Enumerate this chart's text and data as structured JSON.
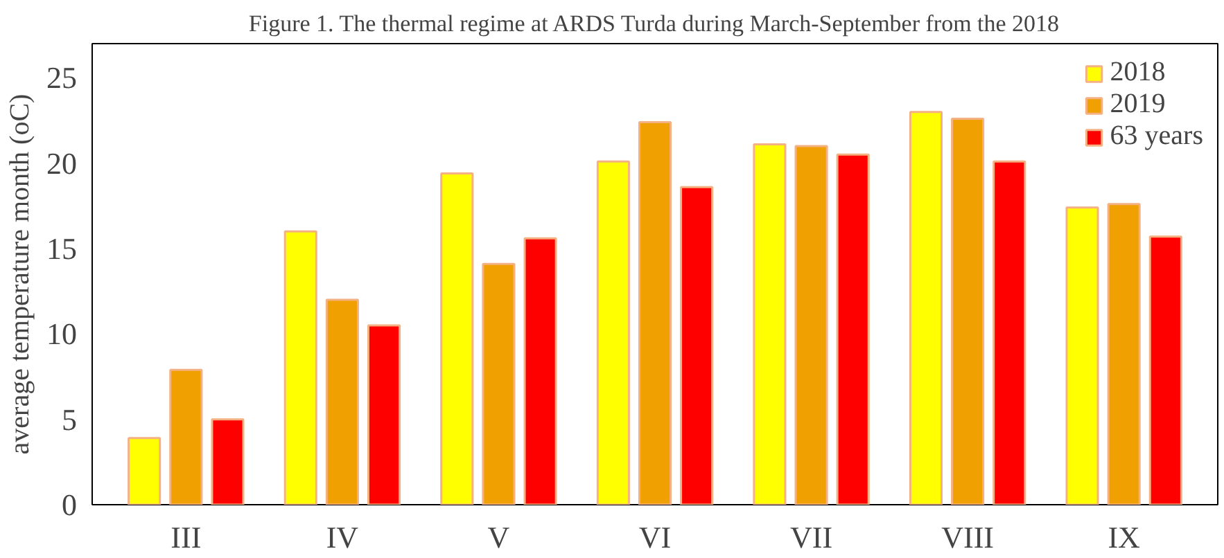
{
  "chart_data": {
    "type": "bar",
    "title": "Figure 1. The thermal regime at ARDS Turda during March-September from the 2018",
    "ylabel": "average temperature month (oC)",
    "categories": [
      "III",
      "IV",
      "V",
      "VI",
      "VII",
      "VIII",
      "IX"
    ],
    "series": [
      {
        "name": "2018",
        "color": "#ffff00",
        "values": [
          3.9,
          16.0,
          19.4,
          20.1,
          21.1,
          23.0,
          17.4
        ]
      },
      {
        "name": "2019",
        "color": "#f0a000",
        "values": [
          7.9,
          12.0,
          14.1,
          22.4,
          21.0,
          22.6,
          17.6
        ]
      },
      {
        "name": "63 years",
        "color": "#ff0000",
        "values": [
          5.0,
          10.5,
          15.6,
          18.6,
          20.5,
          20.1,
          15.7
        ]
      }
    ],
    "ylim": [
      0,
      27
    ],
    "yticks": [
      0,
      5,
      10,
      15,
      20,
      25
    ],
    "grid": false,
    "legend": "top right"
  }
}
